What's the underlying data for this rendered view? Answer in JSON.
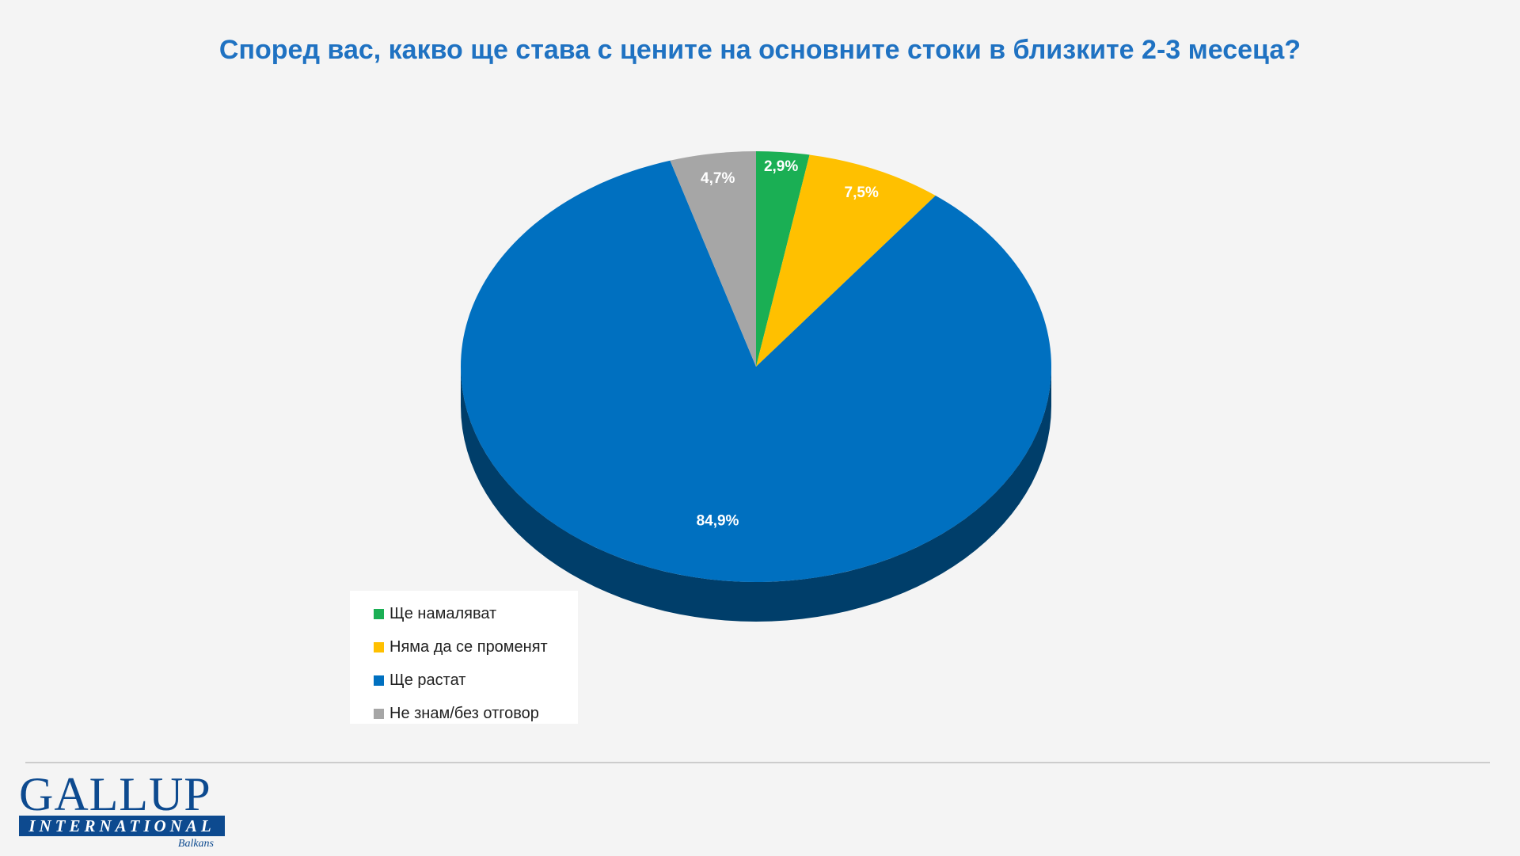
{
  "title": "Според вас, какво ще става с цените на основните стоки в близките 2-3 месеца?",
  "chart_data": {
    "type": "pie",
    "style": "3d",
    "title": "Според вас, какво ще става с цените на основните стоки в близките 2-3 месеца?",
    "categories": [
      "Ще намаляват",
      "Няма да се променят",
      "Ще растат",
      "Не знам/без отговор"
    ],
    "values": [
      2.9,
      7.5,
      84.9,
      4.7
    ],
    "data_labels": [
      "2,9%",
      "7,5%",
      "84,9%",
      "4,7%"
    ],
    "colors": [
      "#1aaf54",
      "#ffc000",
      "#0070c0",
      "#a6a6a6"
    ],
    "legend_position": "bottom-left",
    "unit": "%"
  },
  "legend": {
    "items": [
      {
        "label": "Ще намаляват",
        "color": "#1aaf54"
      },
      {
        "label": "Няма да се променят",
        "color": "#ffc000"
      },
      {
        "label": "Ще растат",
        "color": "#0070c0"
      },
      {
        "label": "Не знам/без отговор",
        "color": "#a6a6a6"
      }
    ]
  },
  "logo": {
    "name": "GALLUP",
    "band": "INTERNATIONAL",
    "sub": "Balkans"
  },
  "colors": {
    "title": "#1f72c2",
    "brand": "#0d4a8f"
  }
}
